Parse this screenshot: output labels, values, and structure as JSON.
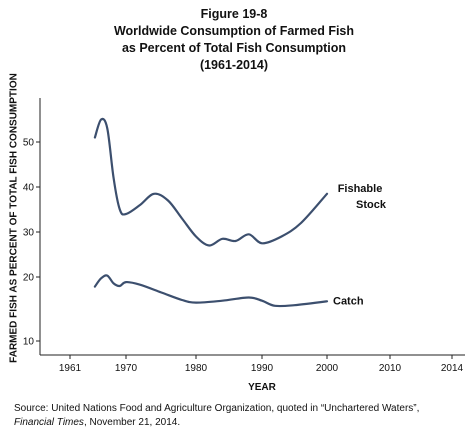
{
  "title_lines": [
    "Figure 19-8",
    "Worldwide Consumption of Farmed Fish",
    "as Percent of Total Fish Consumption",
    "(1961-2014)"
  ],
  "source": {
    "prefix": "Source: United Nations Food and Agriculture Organization, quoted in “Unchartered Waters”,",
    "publication": "Financial Times",
    "date": ", November 21, 2014."
  },
  "chart_data": {
    "type": "line",
    "xlabel": "YEAR",
    "ylabel": "FARMED FISH AS PERCENT OF TOTAL FISH CONSUMPTION",
    "xticks": [
      1961,
      1970,
      1980,
      1990,
      2000,
      2010,
      2014
    ],
    "yticks": [
      10,
      20,
      30,
      40,
      50
    ],
    "ylim": [
      8,
      56
    ],
    "grid": false,
    "series": [
      {
        "name": "Fishable Stock",
        "points": [
          [
            1965,
            51
          ],
          [
            1966,
            55
          ],
          [
            1967,
            53
          ],
          [
            1968,
            42
          ],
          [
            1969,
            35
          ],
          [
            1970,
            34
          ],
          [
            1972,
            36
          ],
          [
            1974,
            38.5
          ],
          [
            1976,
            37
          ],
          [
            1978,
            33
          ],
          [
            1980,
            29
          ],
          [
            1982,
            27
          ],
          [
            1984,
            28.5
          ],
          [
            1986,
            28
          ],
          [
            1988,
            29.5
          ],
          [
            1990,
            27.5
          ],
          [
            1993,
            29
          ],
          [
            1996,
            32
          ],
          [
            2000,
            38.5
          ]
        ]
      },
      {
        "name": "Catch",
        "points": [
          [
            1965,
            18.5
          ],
          [
            1966,
            19.8
          ],
          [
            1967,
            20.3
          ],
          [
            1968,
            19
          ],
          [
            1969,
            18.6
          ],
          [
            1970,
            19.2
          ],
          [
            1972,
            18.8
          ],
          [
            1975,
            17.6
          ],
          [
            1978,
            16.4
          ],
          [
            1980,
            16
          ],
          [
            1984,
            16.3
          ],
          [
            1988,
            16.8
          ],
          [
            1990,
            16.3
          ],
          [
            1992,
            15.5
          ],
          [
            1995,
            15.6
          ],
          [
            2000,
            16.2
          ]
        ]
      }
    ]
  }
}
